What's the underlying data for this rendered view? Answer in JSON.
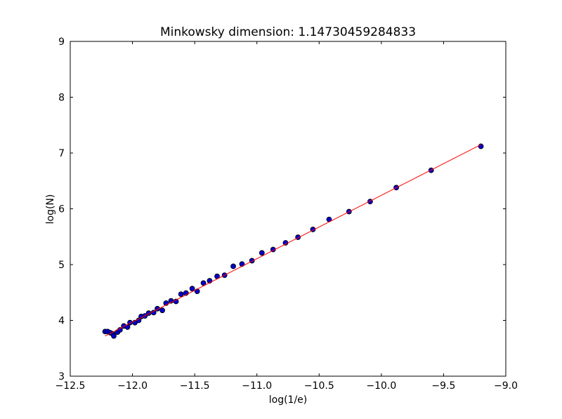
{
  "chart_data": {
    "type": "scatter",
    "title": "Minkowsky dimension: 1.14730459284833",
    "xlabel": "log(1/e)",
    "ylabel": "log(N)",
    "xlim": [
      -12.5,
      -9.0
    ],
    "ylim": [
      3,
      9
    ],
    "xticks": [
      -12.5,
      -12.0,
      -11.5,
      -11.0,
      -10.5,
      -10.0,
      -9.5,
      -9.0
    ],
    "xtick_labels": [
      "−12.5",
      "−12.0",
      "−11.5",
      "−11.0",
      "−10.5",
      "−10.0",
      "−9.5",
      "−9.0"
    ],
    "yticks": [
      3,
      4,
      5,
      6,
      7,
      8,
      9
    ],
    "ytick_labels": [
      "3",
      "4",
      "5",
      "6",
      "7",
      "8",
      "9"
    ],
    "grid": false,
    "marker_color": "#0000cc",
    "line_color": "#ff0000",
    "points": [
      [
        -12.22,
        3.8
      ],
      [
        -12.2,
        3.8
      ],
      [
        -12.18,
        3.78
      ],
      [
        -12.16,
        3.76
      ],
      [
        -12.15,
        3.72
      ],
      [
        -12.12,
        3.79
      ],
      [
        -12.1,
        3.83
      ],
      [
        -12.07,
        3.9
      ],
      [
        -12.04,
        3.88
      ],
      [
        -12.02,
        3.96
      ],
      [
        -11.98,
        3.96
      ],
      [
        -11.95,
        4.0
      ],
      [
        -11.93,
        4.07
      ],
      [
        -11.9,
        4.08
      ],
      [
        -11.87,
        4.13
      ],
      [
        -11.83,
        4.14
      ],
      [
        -11.8,
        4.21
      ],
      [
        -11.76,
        4.18
      ],
      [
        -11.73,
        4.31
      ],
      [
        -11.69,
        4.35
      ],
      [
        -11.65,
        4.34
      ],
      [
        -11.61,
        4.47
      ],
      [
        -11.57,
        4.49
      ],
      [
        -11.52,
        4.57
      ],
      [
        -11.48,
        4.52
      ],
      [
        -11.43,
        4.67
      ],
      [
        -11.38,
        4.71
      ],
      [
        -11.32,
        4.79
      ],
      [
        -11.26,
        4.81
      ],
      [
        -11.19,
        4.97
      ],
      [
        -11.12,
        5.01
      ],
      [
        -11.04,
        5.07
      ],
      [
        -10.96,
        5.21
      ],
      [
        -10.87,
        5.27
      ],
      [
        -10.77,
        5.39
      ],
      [
        -10.67,
        5.49
      ],
      [
        -10.55,
        5.63
      ],
      [
        -10.42,
        5.81
      ],
      [
        -10.26,
        5.95
      ],
      [
        -10.09,
        6.13
      ],
      [
        -9.88,
        6.38
      ],
      [
        -9.6,
        6.69
      ],
      [
        -9.2,
        7.12
      ]
    ],
    "fit_line": {
      "slope": 1.14730459284833,
      "x_range": [
        -12.22,
        -9.2
      ],
      "y_range": [
        3.72,
        7.15
      ]
    }
  }
}
